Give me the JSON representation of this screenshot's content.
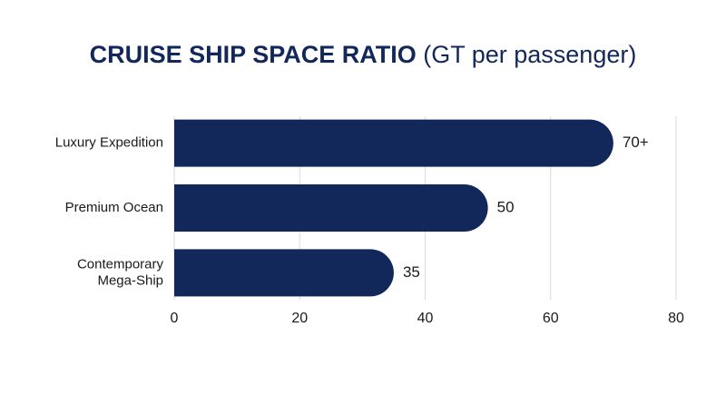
{
  "chart_data": {
    "type": "barh",
    "title": "CRUISE SHIP SPACE RATIO",
    "unit": "(GT per passenger)",
    "categories": [
      "Luxury Expedition",
      "Premium Ocean",
      "Contemporary\nMega-Ship"
    ],
    "values": [
      70,
      50,
      35
    ],
    "value_labels": [
      "70+",
      "50",
      "35"
    ],
    "color": "#13285a",
    "xlim": [
      0,
      80
    ],
    "xticks": [
      0,
      20,
      40,
      60,
      80
    ],
    "grid": true
  }
}
